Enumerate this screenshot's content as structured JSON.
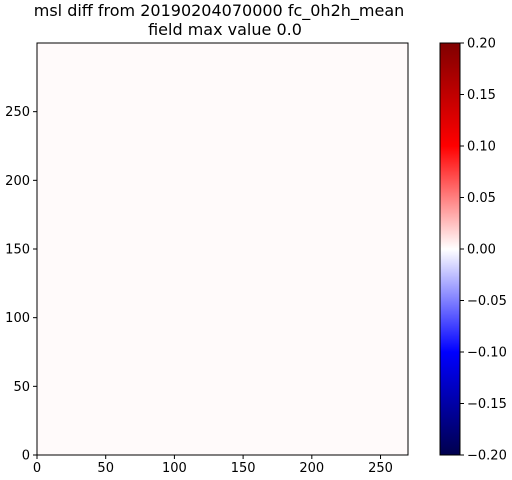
{
  "chart_data": {
    "type": "heatmap",
    "title": "msl diff from 20190204070000 fc_0h2h_mean\nfield max value 0.0",
    "title_lines": [
      "msl diff from 20190204070000 fc_0h2h_mean",
      "field max value 0.0"
    ],
    "xlabel": "",
    "ylabel": "",
    "xlim": [
      0,
      270
    ],
    "ylim": [
      0,
      300
    ],
    "x_ticks": [
      0,
      50,
      100,
      150,
      200,
      250
    ],
    "y_ticks": [
      0,
      50,
      100,
      150,
      200,
      250
    ],
    "field_value": 0.0,
    "field_color": "#fffafa",
    "grid": false,
    "colorbar": {
      "cmap": "seismic",
      "range": [
        -0.2,
        0.2
      ],
      "ticks": [
        -0.2,
        -0.15,
        -0.1,
        -0.05,
        0.0,
        0.05,
        0.1,
        0.15,
        0.2
      ],
      "tick_labels": [
        "−0.20",
        "−0.15",
        "−0.10",
        "−0.05",
        "0.00",
        "0.05",
        "0.10",
        "0.15",
        "0.20"
      ],
      "stops": [
        {
          "value": -0.2,
          "color": "#00004d"
        },
        {
          "value": -0.1,
          "color": "#0000ff"
        },
        {
          "value": 0.0,
          "color": "#ffffff"
        },
        {
          "value": 0.1,
          "color": "#ff0000"
        },
        {
          "value": 0.2,
          "color": "#800000"
        }
      ]
    }
  }
}
